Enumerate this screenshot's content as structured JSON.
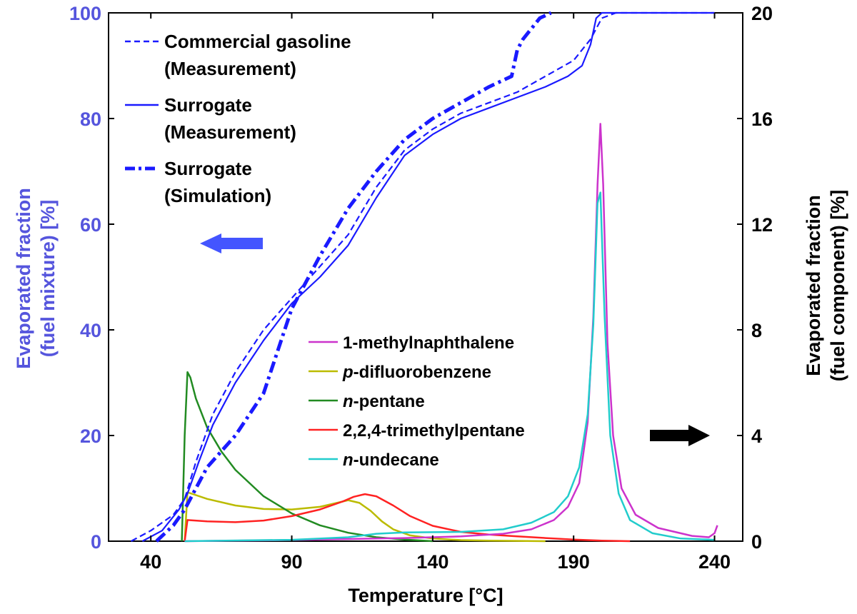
{
  "chart_data": {
    "type": "line",
    "xlabel": "Temperature [°C]",
    "ylabel_left": [
      "Evaporated fraction",
      "(fuel mixture) [%]"
    ],
    "ylabel_right": [
      "Evaporated fraction",
      "(fuel component) [%]"
    ],
    "xlim": [
      25,
      250
    ],
    "ylim_left": [
      0,
      100
    ],
    "ylim_right": [
      0,
      20
    ],
    "xticks": [
      40,
      90,
      140,
      190,
      240
    ],
    "yticks_left": [
      0,
      20,
      40,
      60,
      80,
      100
    ],
    "yticks_right": [
      0,
      4,
      8,
      12,
      16,
      20
    ],
    "grid": false,
    "colors": {
      "mixture": "#1a1aff",
      "left_axis": "#5555dd",
      "right_axis": "#000000",
      "methylnaphthalene": "#cc33cc",
      "difluorobenzene": "#bbbb00",
      "pentane": "#228b22",
      "trimethylpentane": "#ff2222",
      "undecane": "#22cccc"
    },
    "arrows": [
      {
        "direction": "left",
        "axis": "left",
        "color": "#4455ff"
      },
      {
        "direction": "right",
        "axis": "right",
        "color": "#000000"
      }
    ],
    "mixture_legend": [
      {
        "line1": "Commercial gasoline",
        "line2": "(Measurement)",
        "style": "dashed"
      },
      {
        "line1": "Surrogate",
        "line2": "(Measurement)",
        "style": "solid"
      },
      {
        "line1": "Surrogate",
        "line2": "(Simulation)",
        "style": "dashdot"
      }
    ],
    "component_legend": [
      {
        "prefix": "",
        "italic": "",
        "rest": "1-methylnaphthalene",
        "color": "#cc33cc"
      },
      {
        "prefix": "",
        "italic": "p",
        "rest": "-difluorobenzene",
        "color": "#bbbb00"
      },
      {
        "prefix": "",
        "italic": "n",
        "rest": "-pentane",
        "color": "#228b22"
      },
      {
        "prefix": "",
        "italic": "",
        "rest": "2,2,4-trimethylpentane",
        "color": "#ff2222"
      },
      {
        "prefix": "",
        "italic": "n",
        "rest": "-undecane",
        "color": "#22cccc"
      }
    ],
    "series": [
      {
        "key": "gasoline",
        "axis": "left",
        "style": "dashed",
        "color": "#1a1aff",
        "x": [
          33,
          40,
          48,
          52,
          56,
          62,
          70,
          80,
          90,
          100,
          110,
          120,
          130,
          140,
          150,
          160,
          170,
          180,
          190,
          196,
          200,
          205,
          210,
          240
        ],
        "y": [
          0,
          2,
          5,
          8,
          15,
          24,
          32,
          40,
          46,
          52,
          58,
          67,
          74,
          78,
          81,
          83,
          85,
          88,
          91,
          95,
          99,
          100,
          100,
          100
        ]
      },
      {
        "key": "surrogate_meas",
        "axis": "left",
        "style": "solid",
        "color": "#1a1aff",
        "x": [
          37,
          44,
          50,
          53,
          57,
          62,
          70,
          80,
          90,
          100,
          110,
          120,
          130,
          140,
          150,
          160,
          170,
          180,
          188,
          193,
          196,
          198,
          200,
          205,
          240
        ],
        "y": [
          0,
          2,
          6,
          9,
          15,
          22,
          30,
          38,
          45,
          50,
          56,
          65,
          73,
          77,
          80,
          82,
          84,
          86,
          88,
          90,
          94,
          99,
          100,
          100,
          100
        ]
      },
      {
        "key": "surrogate_sim",
        "axis": "left",
        "style": "dashdot",
        "color": "#1a1aff",
        "x": [
          42,
          48,
          52,
          56,
          60,
          70,
          80,
          90,
          100,
          110,
          120,
          130,
          140,
          150,
          160,
          168,
          170,
          172,
          178,
          182
        ],
        "y": [
          0,
          3,
          6,
          10,
          14,
          20,
          28,
          44,
          54,
          63,
          70,
          76,
          80,
          83,
          86,
          88,
          93,
          95,
          99,
          100
        ]
      },
      {
        "key": "methylnaphthalene",
        "axis": "right",
        "style": "solid",
        "color": "#cc33cc",
        "x": [
          52,
          80,
          110,
          130,
          150,
          165,
          175,
          183,
          188,
          192,
          195,
          197,
          198.5,
          199.5,
          200.5,
          202,
          204,
          207,
          212,
          220,
          232,
          238,
          240,
          241
        ],
        "y": [
          0,
          0.03,
          0.08,
          0.12,
          0.18,
          0.28,
          0.45,
          0.8,
          1.3,
          2.2,
          4.5,
          8.5,
          13.5,
          15.8,
          13.5,
          7.5,
          4,
          2,
          1,
          0.5,
          0.2,
          0.15,
          0.3,
          0.6
        ]
      },
      {
        "key": "difluorobenzene",
        "axis": "right",
        "style": "solid",
        "color": "#bbbb00",
        "x": [
          52,
          53,
          60,
          70,
          80,
          90,
          100,
          106,
          110,
          114,
          118,
          122,
          126,
          132,
          140,
          150,
          160,
          170,
          180
        ],
        "y": [
          0,
          1.85,
          1.6,
          1.35,
          1.22,
          1.2,
          1.3,
          1.45,
          1.55,
          1.45,
          1.15,
          0.75,
          0.45,
          0.22,
          0.1,
          0.04,
          0.02,
          0.01,
          0
        ]
      },
      {
        "key": "pentane",
        "axis": "right",
        "style": "solid",
        "color": "#228b22",
        "x": [
          51,
          52,
          53,
          54,
          56,
          60,
          65,
          70,
          80,
          90,
          100,
          110,
          120,
          130,
          140
        ],
        "y": [
          0,
          4,
          6.4,
          6.2,
          5.4,
          4.3,
          3.4,
          2.7,
          1.7,
          1.05,
          0.6,
          0.32,
          0.15,
          0.06,
          0
        ]
      },
      {
        "key": "trimethylpentane",
        "axis": "right",
        "style": "solid",
        "color": "#ff2222",
        "x": [
          52,
          53,
          60,
          70,
          80,
          90,
          100,
          108,
          112,
          116,
          120,
          126,
          132,
          140,
          150,
          160,
          170,
          180,
          190,
          200,
          210
        ],
        "y": [
          0,
          0.8,
          0.75,
          0.72,
          0.78,
          0.95,
          1.2,
          1.5,
          1.68,
          1.78,
          1.7,
          1.35,
          0.95,
          0.58,
          0.35,
          0.25,
          0.18,
          0.12,
          0.06,
          0.02,
          0
        ]
      },
      {
        "key": "undecane",
        "axis": "right",
        "style": "solid",
        "color": "#22cccc",
        "x": [
          52,
          90,
          110,
          120,
          130,
          150,
          165,
          175,
          183,
          188,
          192,
          195,
          197,
          198.5,
          199.5,
          201,
          203,
          206,
          210,
          218,
          228,
          240
        ],
        "y": [
          0,
          0.05,
          0.15,
          0.28,
          0.33,
          0.35,
          0.45,
          0.7,
          1.1,
          1.7,
          2.8,
          4.8,
          8.2,
          12.8,
          13.2,
          8.5,
          4,
          1.8,
          0.8,
          0.3,
          0.1,
          0.05
        ]
      }
    ]
  }
}
